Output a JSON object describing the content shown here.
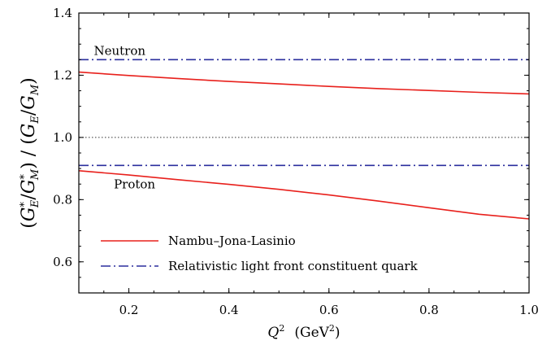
{
  "chart_data": {
    "type": "line",
    "xlabel_parts": {
      "q": "Q",
      "sup": "2",
      "unit_open": "(GeV",
      "unit_sup": "2",
      "unit_close": ")"
    },
    "ylabel_parts": {
      "open1": "(",
      "ge": "G",
      "ge_sub": "E",
      "ge_sup": "*",
      "slash1": "/",
      "gm": "G",
      "gm_sub": "M",
      "gm_sup": "*",
      "close1": ")",
      "middle": " / (",
      "ge2": "G",
      "ge2_sub": "E",
      "slash2": "/",
      "gm2": "G",
      "gm2_sub": "M",
      "close2": ")"
    },
    "xlim": [
      0.1,
      1.0
    ],
    "ylim": [
      0.5,
      1.4
    ],
    "xticks": [
      0.2,
      0.4,
      0.6,
      0.8,
      1.0
    ],
    "xtick_labels": [
      "0.2",
      "0.4",
      "0.6",
      "0.8",
      "1.0"
    ],
    "yticks": [
      0.6,
      0.8,
      1.0,
      1.2,
      1.4
    ],
    "ytick_labels": [
      "0.6",
      "0.8",
      "1.0",
      "1.2",
      "1.4"
    ],
    "annotations": [
      {
        "text": "Neutron",
        "x": 0.13,
        "y": 1.265
      },
      {
        "text": "Proton",
        "x": 0.17,
        "y": 0.836
      }
    ],
    "reference_line": {
      "y": 1.0,
      "style": "dotted",
      "color": "#333333"
    },
    "legend": {
      "placement": "bottom-left"
    },
    "series": [
      {
        "name": "Nambu–Jona-Lasinio",
        "style": "solid",
        "color": "#e8201c",
        "curves": [
          {
            "x": [
              0.1,
              0.2,
              0.3,
              0.4,
              0.5,
              0.6,
              0.7,
              0.8,
              0.9,
              1.0
            ],
            "y": [
              1.21,
              1.199,
              1.189,
              1.18,
              1.172,
              1.164,
              1.157,
              1.151,
              1.145,
              1.14
            ]
          },
          {
            "x": [
              0.1,
              0.2,
              0.3,
              0.4,
              0.5,
              0.6,
              0.7,
              0.8,
              0.9,
              1.0
            ],
            "y": [
              0.893,
              0.879,
              0.864,
              0.849,
              0.833,
              0.815,
              0.795,
              0.774,
              0.753,
              0.738
            ]
          }
        ]
      },
      {
        "name": "Relativistic light front constituent quark",
        "style": "dashdot",
        "color": "#2b2f9e",
        "curves": [
          {
            "x": [
              0.1,
              1.0
            ],
            "y": [
              1.25,
              1.25
            ]
          },
          {
            "x": [
              0.1,
              1.0
            ],
            "y": [
              0.91,
              0.91
            ]
          }
        ]
      }
    ]
  }
}
